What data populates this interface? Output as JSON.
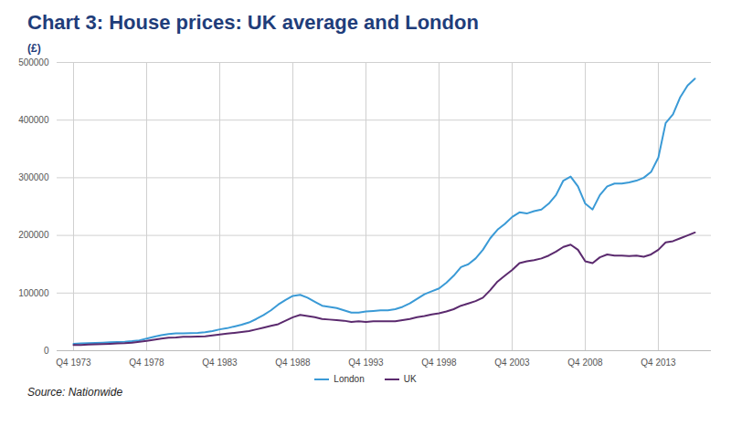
{
  "chart_data": {
    "type": "line",
    "title": "Chart 3: House prices: UK average and London",
    "subtitle": "(£)",
    "caption": "Source: Nationwide",
    "categories": [
      "Q4 1973",
      null,
      null,
      null,
      null,
      null,
      null,
      null,
      null,
      null,
      "Q4 1978",
      null,
      null,
      null,
      null,
      null,
      null,
      null,
      null,
      null,
      "Q4 1983",
      null,
      null,
      null,
      null,
      null,
      null,
      null,
      null,
      null,
      "Q4 1988",
      null,
      null,
      null,
      null,
      null,
      null,
      null,
      null,
      null,
      "Q4 1993",
      null,
      null,
      null,
      null,
      null,
      null,
      null,
      null,
      null,
      "Q4 1998",
      null,
      null,
      null,
      null,
      null,
      null,
      null,
      null,
      null,
      "Q4 2003",
      null,
      null,
      null,
      null,
      null,
      null,
      null,
      null,
      null,
      "Q4 2008",
      null,
      null,
      null,
      null,
      null,
      null,
      null,
      null,
      null,
      "Q4 2013",
      null,
      null,
      null,
      null,
      null
    ],
    "series": [
      {
        "name": "London",
        "color": "#3a9ad6",
        "values": [
          12000,
          12500,
          13000,
          13500,
          14000,
          14500,
          15000,
          15500,
          16500,
          18000,
          21000,
          24000,
          27000,
          29000,
          30000,
          30000,
          30500,
          31000,
          32000,
          34000,
          37000,
          39000,
          42000,
          45000,
          49000,
          55000,
          62000,
          70000,
          80000,
          88000,
          95000,
          97000,
          92000,
          85000,
          78000,
          76000,
          74000,
          70000,
          66000,
          66000,
          68000,
          69000,
          70000,
          70000,
          72000,
          76000,
          82000,
          90000,
          98000,
          103000,
          108000,
          118000,
          130000,
          145000,
          150000,
          160000,
          175000,
          195000,
          210000,
          220000,
          232000,
          240000,
          238000,
          242000,
          245000,
          255000,
          270000,
          295000,
          302000,
          285000,
          255000,
          245000,
          270000,
          285000,
          290000,
          290000,
          292000,
          295000,
          300000,
          310000,
          335000,
          395000,
          410000,
          440000,
          460000,
          472000
        ]
      },
      {
        "name": "UK",
        "color": "#5b2a6e",
        "values": [
          10000,
          10000,
          10500,
          11000,
          11500,
          12000,
          12500,
          13000,
          14000,
          15500,
          17000,
          19000,
          21000,
          22500,
          23000,
          24000,
          24000,
          24500,
          25000,
          26500,
          28000,
          29500,
          31000,
          32500,
          34000,
          37000,
          40000,
          43000,
          46000,
          52000,
          58000,
          62000,
          60000,
          58000,
          55000,
          54000,
          53000,
          52000,
          50000,
          51000,
          50000,
          51000,
          51000,
          51000,
          51000,
          53000,
          55000,
          58000,
          60000,
          63000,
          65000,
          68000,
          72000,
          78000,
          82000,
          86000,
          92000,
          105000,
          120000,
          130000,
          140000,
          152000,
          155000,
          157000,
          160000,
          165000,
          172000,
          180000,
          184000,
          175000,
          155000,
          152000,
          162000,
          167000,
          165000,
          165000,
          164000,
          165000,
          163000,
          167000,
          175000,
          188000,
          190000,
          195000,
          200000,
          205000
        ]
      }
    ],
    "ylim": [
      0,
      500000
    ],
    "yticks": [
      0,
      100000,
      200000,
      300000,
      400000,
      500000
    ],
    "grid": true,
    "legend": "bottom"
  }
}
